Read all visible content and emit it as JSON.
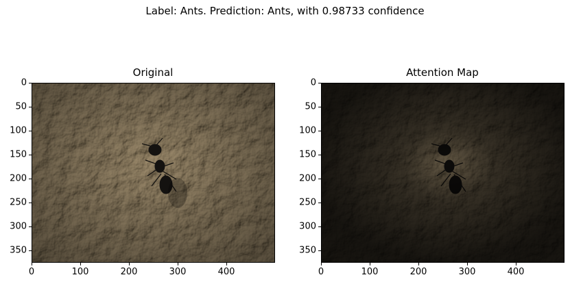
{
  "figure": {
    "suptitle": "Label: Ants. Prediction: Ants, with 0.98733 confidence"
  },
  "panels": [
    {
      "title": "Original",
      "image_desc_icon": "ant-on-stone-photo",
      "xticks": [
        "0",
        "100",
        "200",
        "300",
        "400"
      ],
      "yticks": [
        "0",
        "50",
        "100",
        "150",
        "200",
        "250",
        "300",
        "350"
      ]
    },
    {
      "title": "Attention Map",
      "image_desc_icon": "ant-on-stone-attention-overlay",
      "xticks": [
        "0",
        "100",
        "200",
        "300",
        "400"
      ],
      "yticks": [
        "0",
        "50",
        "100",
        "150",
        "200",
        "250",
        "300",
        "350"
      ]
    }
  ],
  "colors": {
    "stone_base": "#8c7a5e",
    "stone_light": "#b9a684",
    "stone_dark": "#4a3f30",
    "ant": "#141210",
    "attention_dim": "#000000"
  },
  "image_extent": {
    "width": 500,
    "height": 375
  }
}
